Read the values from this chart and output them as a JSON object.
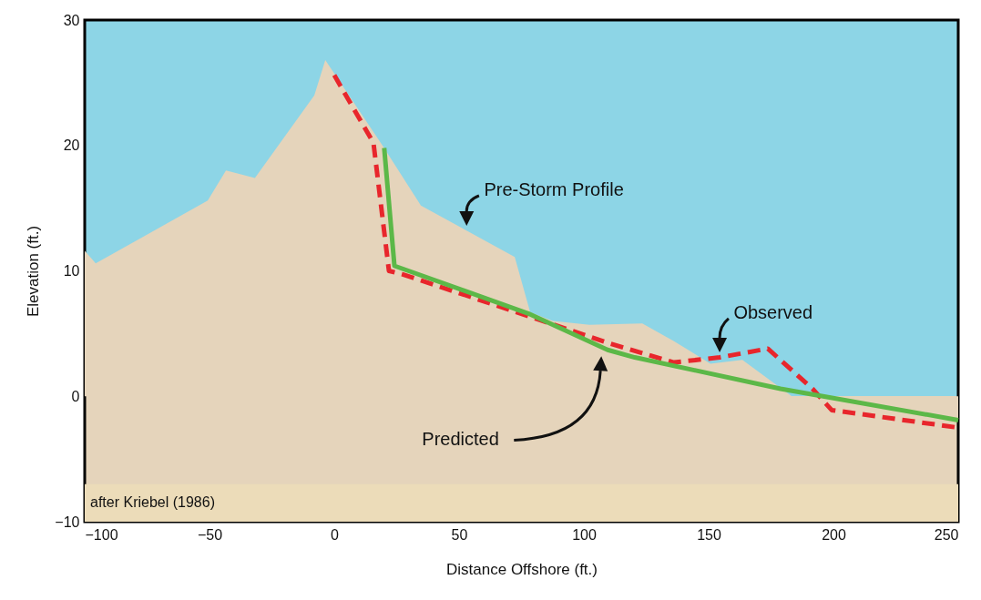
{
  "chart_data": {
    "type": "line",
    "xlabel": "Distance Offshore (ft.)",
    "ylabel": "Elevation (ft.)",
    "xlim": [
      -100,
      250
    ],
    "ylim": [
      -10,
      30
    ],
    "xticks": [
      -100,
      -50,
      0,
      50,
      100,
      150,
      200,
      250
    ],
    "yticks": [
      -10,
      0,
      10,
      20,
      30
    ],
    "grid": false,
    "legend": false,
    "bands": [
      {
        "axis": "y",
        "from": -10,
        "to": -7,
        "label": "after Kriebel (1986)",
        "color": "#ecdcb9"
      }
    ],
    "series": [
      {
        "name": "Pre-Storm Profile",
        "type": "area",
        "color": "#e5d4bb",
        "x": [
          -100,
          -95.6,
          -50.7,
          -43.4,
          -31.8,
          -8,
          -3.6,
          19.3,
          34.7,
          54,
          72.3,
          78.5,
          87.6,
          102.2,
          123.4,
          136.1,
          150.7,
          163.5,
          184.7,
          213.9,
          250
        ],
        "values": [
          11.6,
          10.6,
          15.6,
          18,
          17.4,
          24,
          26.8,
          20,
          15.2,
          13.1,
          11.1,
          6.7,
          6,
          5.7,
          5.8,
          4.4,
          2.6,
          2.9,
          -0.2,
          -0.9,
          -1.8
        ]
      },
      {
        "name": "Observed",
        "type": "line",
        "line_style": "dashed",
        "color": "#e8262c",
        "x": [
          0,
          15.7,
          21.9,
          27.7,
          77.7,
          110.6,
          136.1,
          154.4,
          173.7,
          191.6,
          199.3,
          250
        ],
        "values": [
          25.6,
          20.2,
          10,
          9.7,
          6.4,
          4.2,
          2.7,
          3.1,
          3.8,
          0.6,
          -1.1,
          -2.5
        ]
      },
      {
        "name": "Predicted",
        "type": "line",
        "line_style": "solid",
        "color": "#5cb848",
        "x": [
          20,
          24.1,
          77.7,
          109.5,
          120.4,
          178.8,
          250
        ],
        "values": [
          19.8,
          10.4,
          6.6,
          3.7,
          3.1,
          0.6,
          -1.9
        ]
      }
    ]
  }
}
